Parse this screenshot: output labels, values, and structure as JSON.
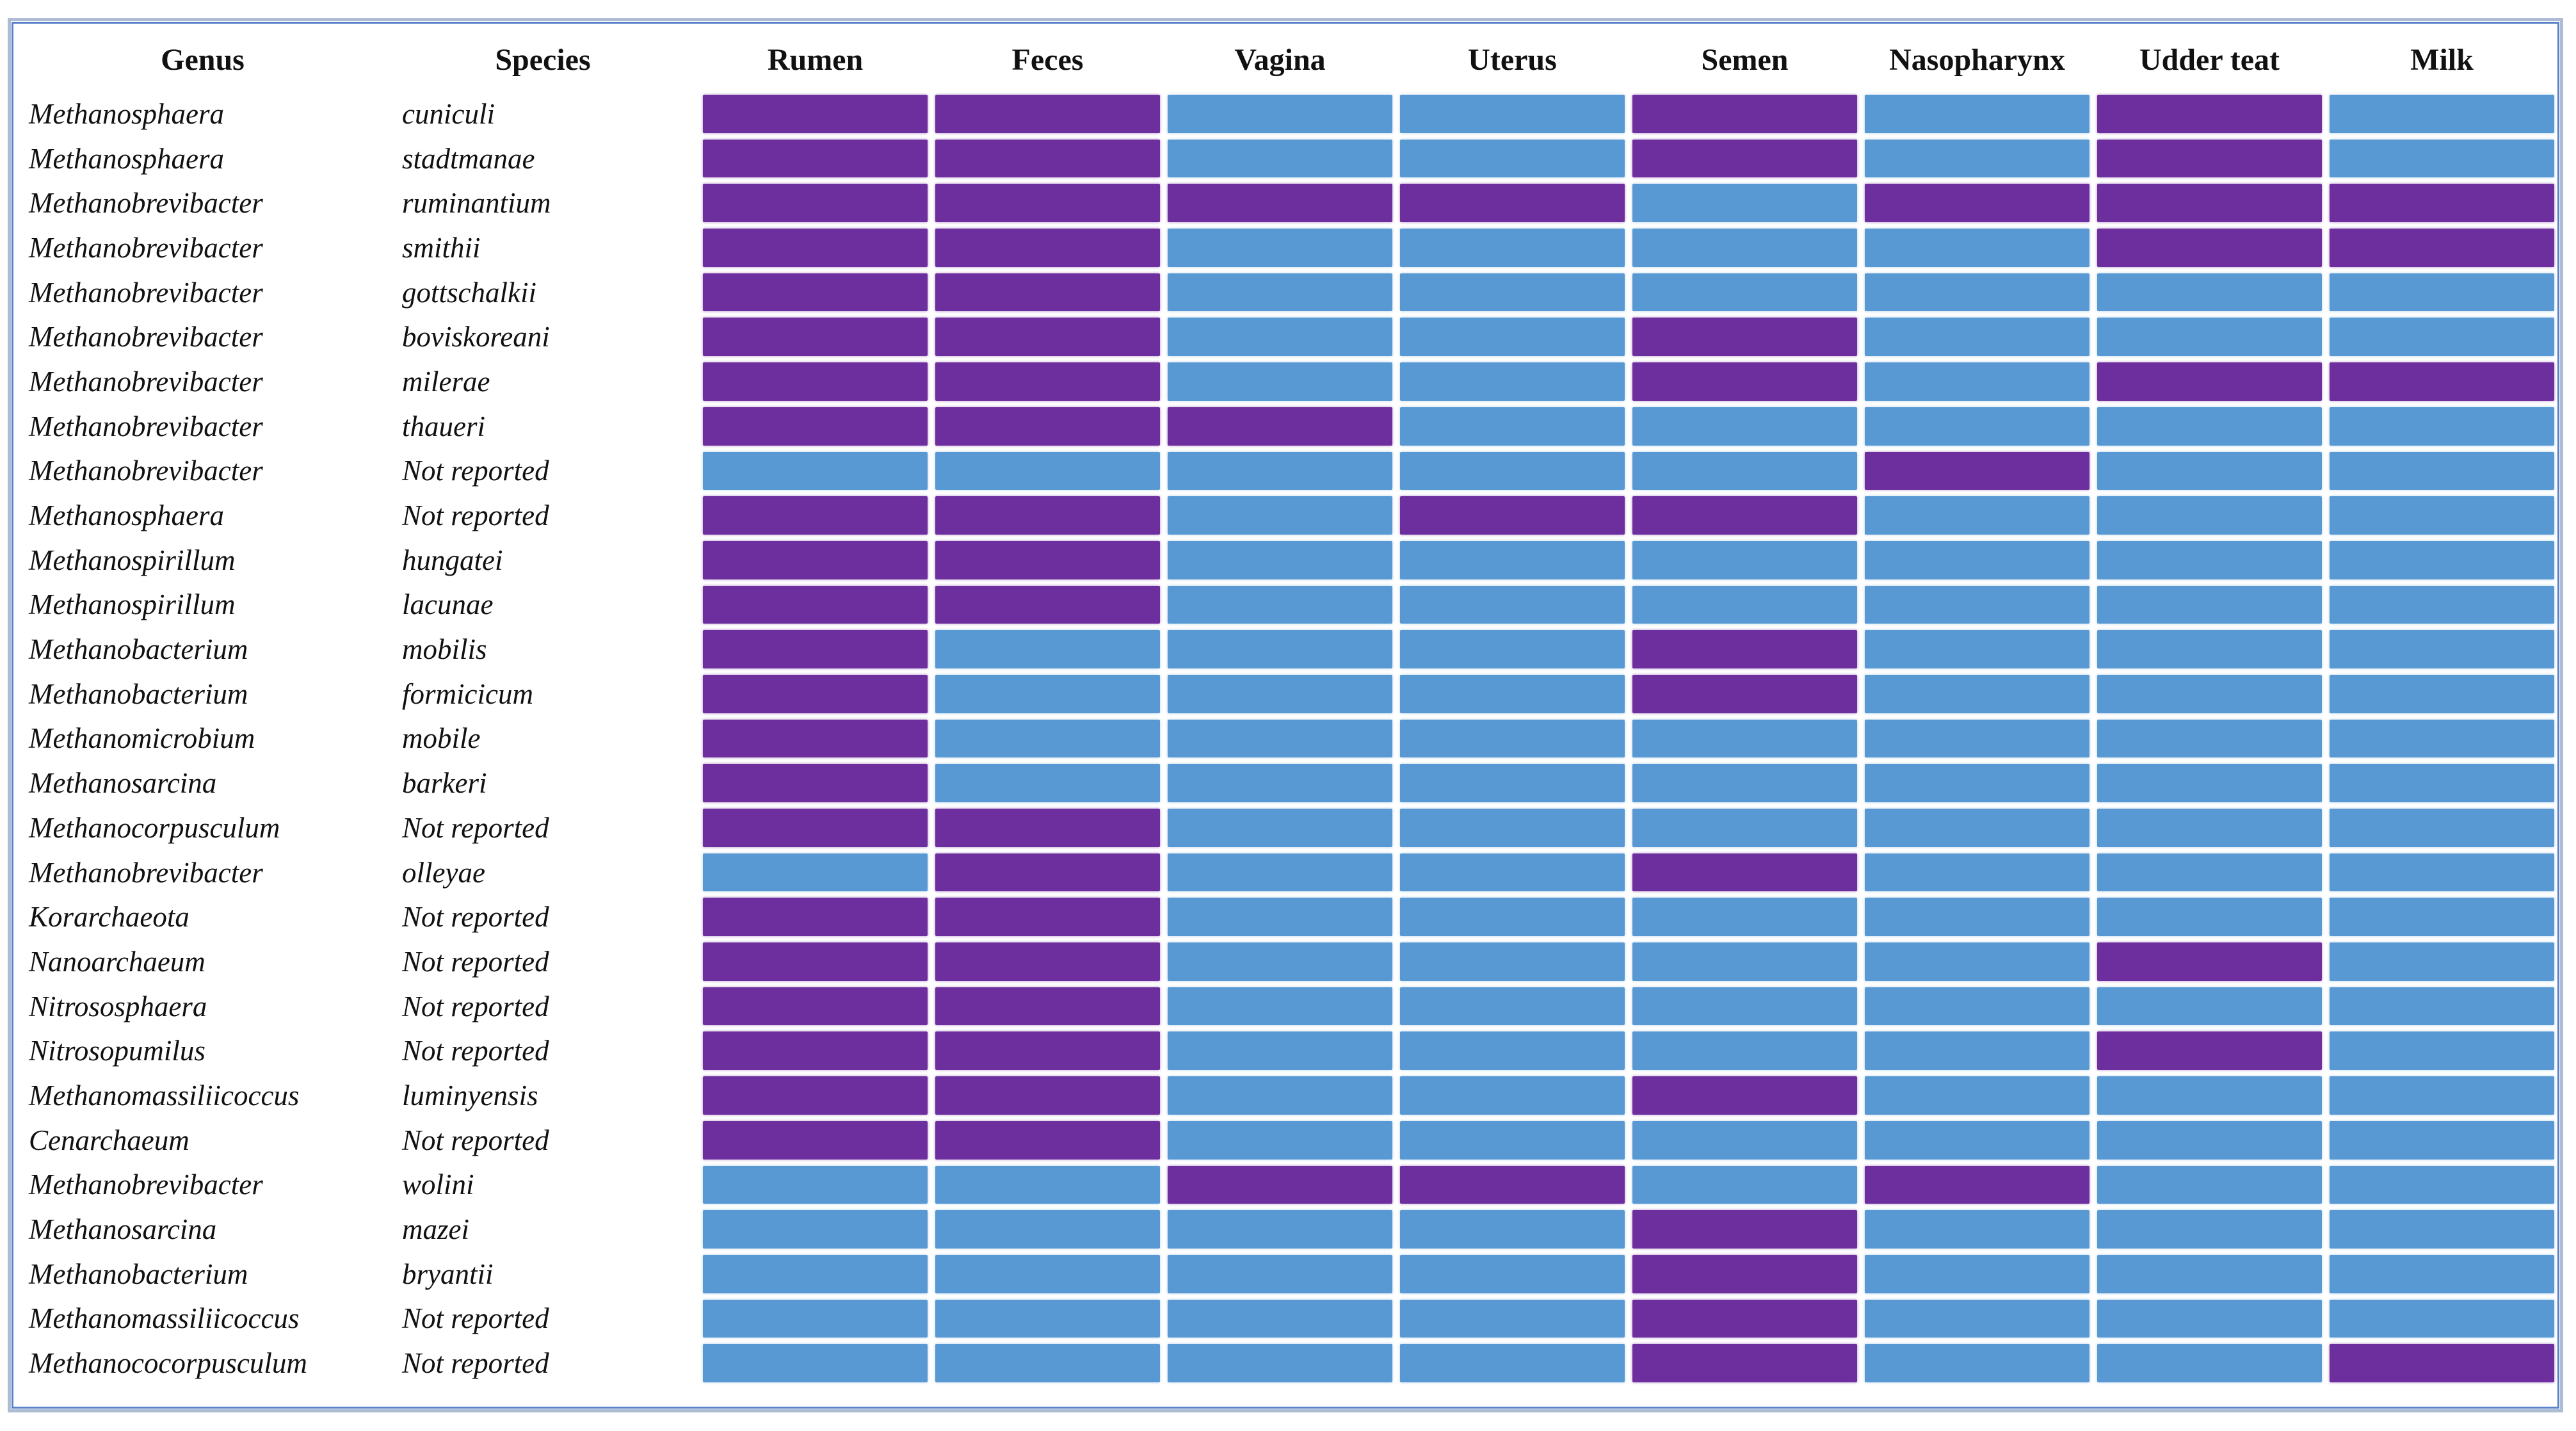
{
  "chart_data": {
    "type": "heatmap",
    "title": "",
    "columns": [
      "Genus",
      "Species",
      "Rumen",
      "Feces",
      "Vagina",
      "Uterus",
      "Semen",
      "Nasopharynx",
      "Udder teat",
      "Milk"
    ],
    "site_columns": [
      "Rumen",
      "Feces",
      "Vagina",
      "Uterus",
      "Semen",
      "Nasopharynx",
      "Udder teat",
      "Milk"
    ],
    "value_meaning": {
      "1": "reported / present (purple)",
      "0": "not reported / absent (blue)"
    },
    "colors": {
      "present": "#6E2F9E",
      "absent": "#5899D3"
    },
    "legend_position": "none",
    "grid": "white gaps between cells",
    "rows": [
      {
        "genus": "Methanosphaera",
        "species": "cuniculi",
        "values": [
          1,
          1,
          0,
          0,
          1,
          0,
          1,
          0
        ]
      },
      {
        "genus": "Methanosphaera",
        "species": "stadtmanae",
        "values": [
          1,
          1,
          0,
          0,
          1,
          0,
          1,
          0
        ]
      },
      {
        "genus": "Methanobrevibacter",
        "species": "ruminantium",
        "values": [
          1,
          1,
          1,
          1,
          0,
          1,
          1,
          1
        ]
      },
      {
        "genus": "Methanobrevibacter",
        "species": "smithii",
        "values": [
          1,
          1,
          0,
          0,
          0,
          0,
          1,
          1
        ]
      },
      {
        "genus": "Methanobrevibacter",
        "species": "gottschalkii",
        "values": [
          1,
          1,
          0,
          0,
          0,
          0,
          0,
          0
        ]
      },
      {
        "genus": "Methanobrevibacter",
        "species": "boviskoreani",
        "values": [
          1,
          1,
          0,
          0,
          1,
          0,
          0,
          0
        ]
      },
      {
        "genus": "Methanobrevibacter",
        "species": "milerae",
        "values": [
          1,
          1,
          0,
          0,
          1,
          0,
          1,
          1
        ]
      },
      {
        "genus": "Methanobrevibacter",
        "species": "thaueri",
        "values": [
          1,
          1,
          1,
          0,
          0,
          0,
          0,
          0
        ]
      },
      {
        "genus": "Methanobrevibacter",
        "species": "Not reported",
        "values": [
          0,
          0,
          0,
          0,
          0,
          1,
          0,
          0
        ]
      },
      {
        "genus": "Methanosphaera",
        "species": "Not reported",
        "values": [
          1,
          1,
          0,
          1,
          1,
          0,
          0,
          0
        ]
      },
      {
        "genus": "Methanospirillum",
        "species": "hungatei",
        "values": [
          1,
          1,
          0,
          0,
          0,
          0,
          0,
          0
        ]
      },
      {
        "genus": "Methanospirillum",
        "species": "lacunae",
        "values": [
          1,
          1,
          0,
          0,
          0,
          0,
          0,
          0
        ]
      },
      {
        "genus": "Methanobacterium",
        "species": "mobilis",
        "values": [
          1,
          0,
          0,
          0,
          1,
          0,
          0,
          0
        ]
      },
      {
        "genus": "Methanobacterium",
        "species": "formicicum",
        "values": [
          1,
          0,
          0,
          0,
          1,
          0,
          0,
          0
        ]
      },
      {
        "genus": "Methanomicrobium",
        "species": "mobile",
        "values": [
          1,
          0,
          0,
          0,
          0,
          0,
          0,
          0
        ]
      },
      {
        "genus": "Methanosarcina",
        "species": "barkeri",
        "values": [
          1,
          0,
          0,
          0,
          0,
          0,
          0,
          0
        ]
      },
      {
        "genus": "Methanocorpusculum",
        "species": "Not reported",
        "values": [
          1,
          1,
          0,
          0,
          0,
          0,
          0,
          0
        ]
      },
      {
        "genus": "Methanobrevibacter",
        "species": "olleyae",
        "values": [
          0,
          1,
          0,
          0,
          1,
          0,
          0,
          0
        ]
      },
      {
        "genus": "Korarchaeota",
        "species": "Not reported",
        "values": [
          1,
          1,
          0,
          0,
          0,
          0,
          0,
          0
        ]
      },
      {
        "genus": "Nanoarchaeum",
        "species": "Not reported",
        "values": [
          1,
          1,
          0,
          0,
          0,
          0,
          1,
          0
        ]
      },
      {
        "genus": "Nitrososphaera",
        "species": "Not reported",
        "values": [
          1,
          1,
          0,
          0,
          0,
          0,
          0,
          0
        ]
      },
      {
        "genus": "Nitrosopumilus",
        "species": "Not reported",
        "values": [
          1,
          1,
          0,
          0,
          0,
          0,
          1,
          0
        ]
      },
      {
        "genus": "Methanomassiliicoccus",
        "species": "luminyensis",
        "values": [
          1,
          1,
          0,
          0,
          1,
          0,
          0,
          0
        ]
      },
      {
        "genus": "Cenarchaeum",
        "species": "Not reported",
        "values": [
          1,
          1,
          0,
          0,
          0,
          0,
          0,
          0
        ]
      },
      {
        "genus": "Methanobrevibacter",
        "species": "wolini",
        "values": [
          0,
          0,
          1,
          1,
          0,
          1,
          0,
          0
        ]
      },
      {
        "genus": "Methanosarcina",
        "species": "mazei",
        "values": [
          0,
          0,
          0,
          0,
          1,
          0,
          0,
          0
        ]
      },
      {
        "genus": "Methanobacterium",
        "species": "bryantii",
        "values": [
          0,
          0,
          0,
          0,
          1,
          0,
          0,
          0
        ]
      },
      {
        "genus": "Methanomassiliicoccus",
        "species": "Not reported",
        "values": [
          0,
          0,
          0,
          0,
          1,
          0,
          0,
          0
        ]
      },
      {
        "genus": "Methanococorpusculum",
        "species": "Not reported",
        "values": [
          0,
          0,
          0,
          0,
          1,
          0,
          0,
          1
        ]
      }
    ]
  }
}
